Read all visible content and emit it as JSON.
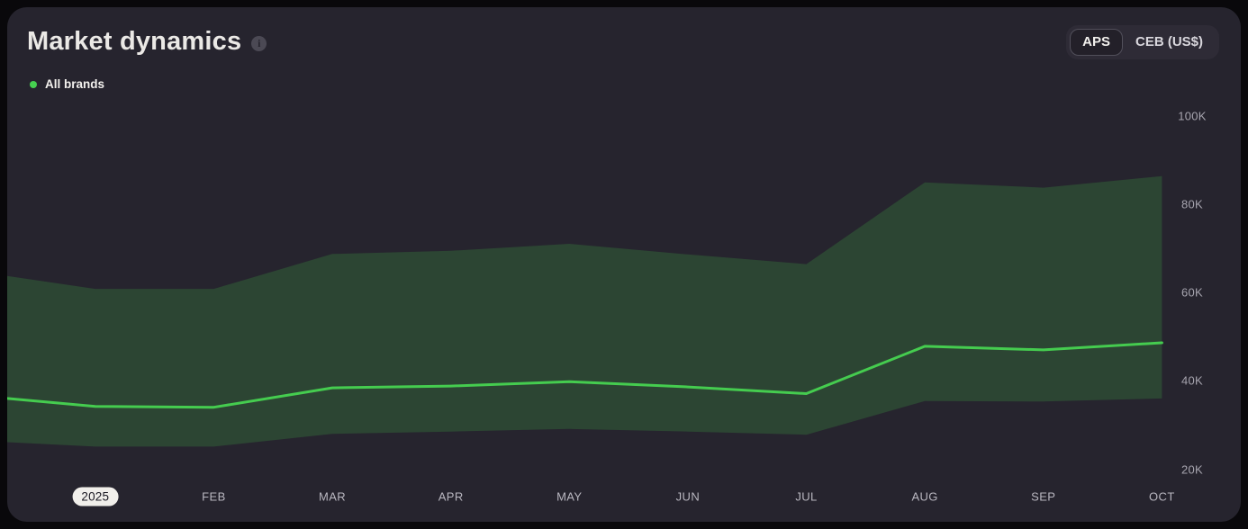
{
  "header": {
    "title": "Market dynamics",
    "info_glyph": "i",
    "toggle": {
      "options": [
        {
          "label": "APS",
          "selected": true
        },
        {
          "label": "CEB (US$)",
          "selected": false
        }
      ]
    }
  },
  "legend": {
    "items": [
      {
        "label": "All brands",
        "color": "#46d050"
      }
    ]
  },
  "chart_data": {
    "type": "area",
    "title": "Market dynamics",
    "categories": [
      "2025",
      "FEB",
      "MAR",
      "APR",
      "MAY",
      "JUN",
      "JUL",
      "AUG",
      "SEP",
      "OCT"
    ],
    "x_axis_note": "first tick rendered as white year pill (Jan 2025)",
    "unit": "US$ thousands",
    "series": [
      {
        "name": "All brands upper band",
        "values": [
          60.8,
          60.8,
          68.7,
          69.4,
          71.0,
          68.6,
          66.4,
          84.9,
          83.7,
          86.3
        ]
      },
      {
        "name": "All brands median",
        "values": [
          34.2,
          34.0,
          38.4,
          38.8,
          39.8,
          38.6,
          37.1,
          47.8,
          47.0,
          48.6
        ]
      },
      {
        "name": "All brands lower band",
        "values": [
          25.1,
          25.1,
          28.0,
          28.5,
          29.1,
          28.5,
          27.8,
          35.4,
          35.3,
          36.0
        ]
      }
    ],
    "left_edge": {
      "upper": 63.7,
      "mid": 36.0,
      "lower": 26.1
    },
    "y_ticks": [
      "100K",
      "80K",
      "60K",
      "40K",
      "20K"
    ],
    "ylim": [
      20,
      100
    ],
    "grid": false,
    "legend_position": "top-left",
    "colors": {
      "band": "#2c4533",
      "line": "#45cc4f",
      "background": "#26242e"
    }
  }
}
